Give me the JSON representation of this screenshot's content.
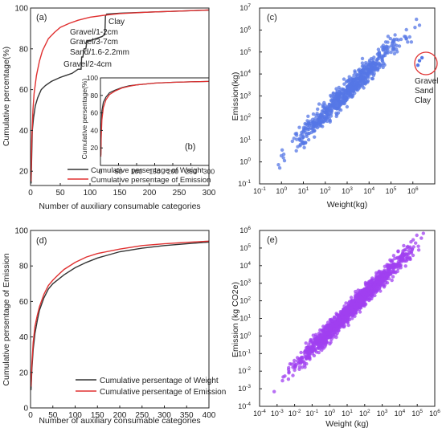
{
  "chart_data": [
    {
      "id": "a",
      "panel_label": "(a)",
      "type": "line",
      "xlabel": "Number of auxiliary consumable categories",
      "ylabel": "Cumulative percentage(%)",
      "xlim": [
        0,
        300
      ],
      "ylim": [
        13,
        100
      ],
      "xticks": [
        0,
        50,
        100,
        150,
        200,
        250,
        300
      ],
      "yticks": [
        20,
        40,
        60,
        80,
        100
      ],
      "legend_position": "bottom-right",
      "series": [
        {
          "name": "Cumulative persentage of Weight",
          "color": "#333333",
          "x": [
            1,
            2,
            3,
            5,
            8,
            12,
            18,
            25,
            35,
            50,
            60,
            70,
            80,
            85,
            86,
            88,
            90,
            93,
            95,
            100,
            110,
            120,
            125,
            126,
            128,
            150,
            200,
            250,
            300
          ],
          "y": [
            14,
            28,
            40,
            46,
            52,
            56,
            60,
            62,
            64,
            66,
            67,
            68,
            70,
            70,
            76,
            76,
            80,
            80,
            84,
            84,
            85,
            86,
            87,
            96,
            97,
            97.5,
            98,
            98.5,
            99
          ]
        },
        {
          "name": "Cumulative persentage of Emission",
          "color": "#e03030",
          "x": [
            1,
            2,
            4,
            6,
            10,
            15,
            20,
            30,
            40,
            50,
            65,
            80,
            100,
            125,
            150,
            200,
            250,
            300
          ],
          "y": [
            15,
            35,
            50,
            58,
            67,
            74,
            79,
            85,
            88,
            90.5,
            92.5,
            94,
            95.5,
            96.5,
            97.3,
            98,
            98.5,
            99
          ]
        }
      ],
      "annotations": [
        "Clay",
        "Gravel/1-2cm",
        "Gravel/3-7cm",
        "Sand/1.6-2.2mm",
        "Gravel/2-4cm"
      ],
      "inset": {
        "panel_label": "(b)",
        "ylabel": "Cumulative persentage(%)",
        "xlim": [
          0,
          300
        ],
        "ylim": [
          0,
          100
        ],
        "xticks": [
          0,
          50,
          100,
          150,
          200,
          250,
          300
        ],
        "yticks": [
          20,
          40,
          60,
          80,
          100
        ],
        "series": [
          {
            "name": "Weight",
            "color": "#333333",
            "x": [
              1,
              2,
              4,
              8,
              15,
              25,
              40,
              60,
              80,
              100,
              125,
              150,
              200,
              250,
              300
            ],
            "y": [
              12,
              40,
              62,
              72,
              78,
              83,
              86,
              89,
              91,
              92,
              93,
              94,
              95,
              95.5,
              96
            ]
          },
          {
            "name": "Emission",
            "color": "#e03030",
            "x": [
              1,
              2,
              4,
              8,
              15,
              25,
              40,
              60,
              80,
              100,
              125,
              150,
              200,
              250,
              300
            ],
            "y": [
              10,
              30,
              52,
              66,
              75,
              81,
              85,
              88.5,
              90.5,
              92,
              93,
              94,
              95,
              95.5,
              96
            ]
          }
        ]
      }
    },
    {
      "id": "c",
      "panel_label": "(c)",
      "type": "scatter",
      "xlabel": "Weight(kg)",
      "ylabel": "Emission(kg)",
      "x_scale": "log",
      "y_scale": "log",
      "xlim": [
        0.1,
        10000000
      ],
      "ylim": [
        0.1,
        10000000
      ],
      "xtick_exponents": [
        -1,
        0,
        1,
        2,
        3,
        4,
        5,
        6
      ],
      "ytick_exponents": [
        -1,
        0,
        1,
        2,
        3,
        4,
        5,
        6,
        7
      ],
      "color": "#5577e6",
      "trend_log10_intercept": 0.2,
      "spread_log10": 0.45,
      "n_points": 700,
      "x_log10_range": [
        -0.7,
        6.8
      ],
      "outliers": [
        {
          "x": 2000000,
          "y": 40000
        },
        {
          "x": 2600000,
          "y": 55000
        },
        {
          "x": 1700000,
          "y": 25000
        }
      ],
      "annotations": [
        "Gravel",
        "Sand",
        "Clay"
      ],
      "highlight_color": "#e03030"
    },
    {
      "id": "d",
      "panel_label": "(d)",
      "type": "line",
      "xlabel": "Number of auxiliary consumable categories",
      "ylabel": "Cumulative persentage of Emission",
      "xlim": [
        0,
        400
      ],
      "ylim": [
        0,
        100
      ],
      "xticks": [
        0,
        50,
        100,
        150,
        200,
        250,
        300,
        350,
        400
      ],
      "yticks": [
        0,
        20,
        40,
        60,
        80,
        100
      ],
      "legend_position": "bottom-right",
      "series": [
        {
          "name": "Cumulative persentage of Weight",
          "color": "#333333",
          "x": [
            1,
            3,
            6,
            10,
            15,
            20,
            30,
            40,
            50,
            60,
            75,
            100,
            125,
            150,
            200,
            250,
            300,
            350,
            400
          ],
          "y": [
            10,
            22,
            33,
            42,
            49,
            55,
            62,
            67,
            70,
            72,
            75,
            79,
            82,
            84.5,
            88,
            90,
            91.5,
            92.5,
            93.5
          ]
        },
        {
          "name": "Cumulative persentage of Emission",
          "color": "#e03030",
          "x": [
            1,
            3,
            6,
            10,
            15,
            20,
            30,
            40,
            50,
            60,
            75,
            100,
            125,
            150,
            200,
            250,
            300,
            350,
            400
          ],
          "y": [
            12,
            25,
            37,
            46,
            52,
            57,
            64,
            69,
            72,
            74.5,
            78,
            82,
            85,
            87,
            89.5,
            91.5,
            92.5,
            93.3,
            94
          ]
        }
      ]
    },
    {
      "id": "e",
      "panel_label": "(e)",
      "type": "scatter",
      "xlabel": "Weight (kg)",
      "ylabel": "Emission (kg CO2e)",
      "x_scale": "log",
      "y_scale": "log",
      "xlim": [
        0.0001,
        1000000
      ],
      "ylim": [
        0.0001,
        1000000
      ],
      "xtick_exponents": [
        -4,
        -3,
        -2,
        -1,
        0,
        1,
        2,
        3,
        4,
        5,
        6
      ],
      "ytick_exponents": [
        -4,
        -3,
        -2,
        -1,
        0,
        1,
        2,
        3,
        4,
        5,
        6
      ],
      "color": "#a040f0",
      "trend_log10_intercept": 0.3,
      "spread_log10": 0.45,
      "n_points": 1500,
      "x_log10_range": [
        -3.3,
        5.8
      ]
    }
  ]
}
